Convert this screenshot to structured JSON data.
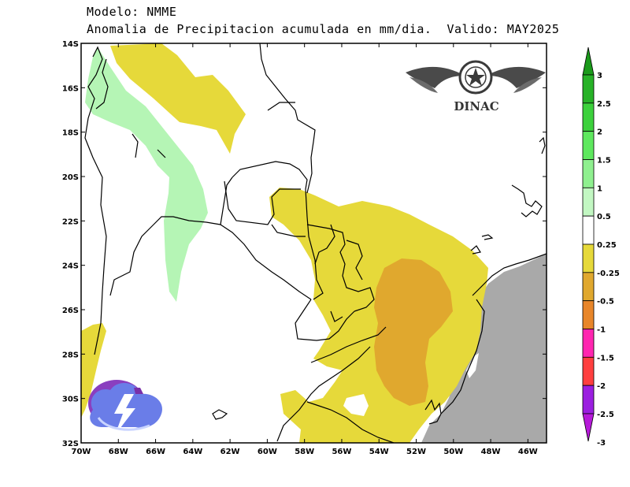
{
  "title": {
    "line1": "Modelo: NMME",
    "line2": "Anomalia de Precipitacion acumulada en mm/dia.  Valido: MAY2025"
  },
  "logo": {
    "text": "DINAC"
  },
  "lat_ticks": [
    "14S",
    "16S",
    "18S",
    "20S",
    "22S",
    "24S",
    "26S",
    "28S",
    "30S",
    "32S"
  ],
  "lon_ticks": [
    "70W",
    "68W",
    "66W",
    "64W",
    "62W",
    "60W",
    "58W",
    "56W",
    "54W",
    "52W",
    "50W",
    "48W",
    "46W"
  ],
  "colorbar": {
    "labels": [
      "3",
      "2.5",
      "2",
      "1.5",
      "1",
      "0.5",
      "0.25",
      "-0.25",
      "-0.5",
      "-1",
      "-1.5",
      "-2",
      "-2.5",
      "-3"
    ],
    "colors": [
      "#1a9a1a",
      "#27b227",
      "#3cd13c",
      "#5ee85e",
      "#8ff08f",
      "#c2f7c2",
      "#ffffff",
      "#e6d93a",
      "#e0a82e",
      "#e8862a",
      "#ff26b0",
      "#ff3f3f",
      "#9b1fe0",
      "#b61ad9"
    ]
  },
  "chart_data": {
    "type": "heatmap",
    "variable": "Anomalia de Precipitacion acumulada",
    "units": "mm/dia",
    "lon_range": [
      -70,
      -45
    ],
    "lat_range": [
      -32,
      -14
    ],
    "regions": [
      {
        "level": "0.25 to 0.5",
        "color": "#b5f5b5",
        "area": "Bolivia north-west to Chaco"
      },
      {
        "level": "-0.25 to -0.5",
        "color": "#e6d93a",
        "area": "north-central Bolivia"
      },
      {
        "level": "-0.25 to -0.5",
        "color": "#e6d93a",
        "area": "eastern Paraguay, southern Brazil, Uruguay"
      },
      {
        "level": "-0.5 to -1",
        "color": "#e0a82e",
        "area": "Rio Grande do Sul / Santa Catarina"
      },
      {
        "level": "-0.25 to -0.5",
        "color": "#e6d93a",
        "area": "western Argentina edge"
      },
      {
        "level": "no data",
        "color": "#a9a9a9",
        "area": "Atlantic Ocean"
      }
    ]
  }
}
